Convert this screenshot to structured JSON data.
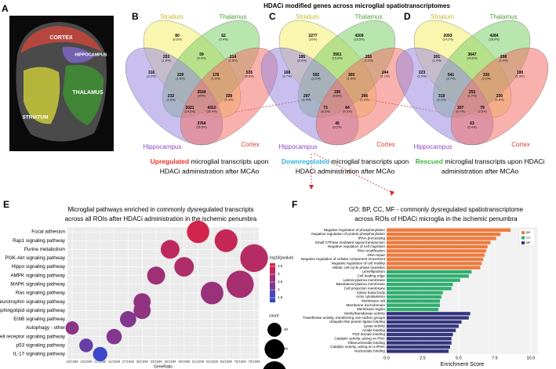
{
  "title": "HDACi modified genes across microglial spatiotranscriptomes",
  "panel_labels": [
    "A",
    "B",
    "C",
    "D",
    "E",
    "F"
  ],
  "brain": {
    "labels": [
      "CORTEX",
      "HIPPOCAMPUS",
      "THALAMUS",
      "STRIATUM"
    ]
  },
  "set_colors": [
    "#f3ee6e",
    "#7fcf6c",
    "#9a8be0",
    "#f2716a"
  ],
  "venns": [
    {
      "sets": [
        "Striatum",
        "Thalamus",
        "Hippocampus",
        "Cortex"
      ],
      "highlight_color": "#e8302a",
      "caption": {
        "highlight": "Upregulated",
        "text": " microglial transcripts upon",
        "text2": "HDACi administration after MCAo"
      },
      "regions": [
        {
          "count": 80,
          "pct": "(0.6%)"
        },
        {
          "count": 62,
          "pct": "(0.4%)"
        },
        {
          "count": 253,
          "pct": "(1.8%)"
        },
        {
          "count": 59,
          "pct": "(0.4%)"
        },
        {
          "count": 214,
          "pct": "(1.5%)"
        },
        {
          "count": 316,
          "pct": "(2.2%)"
        },
        {
          "count": 229,
          "pct": "(1.6%)"
        },
        {
          "count": 178,
          "pct": "(1.3%)"
        },
        {
          "count": 535,
          "pct": "(3.8%)"
        },
        {
          "count": 3544,
          "pct": "(25%)"
        },
        {
          "count": 232,
          "pct": "(1.6%)"
        },
        {
          "count": 328,
          "pct": "(2.3%)"
        },
        {
          "count": 2021,
          "pct": "(14.2%)"
        },
        {
          "count": 4310,
          "pct": "(30.4%)"
        },
        {
          "count": 3764,
          "pct": "(26.5%)"
        }
      ]
    },
    {
      "sets": [
        "Striatum",
        "Thalamus",
        "Hippocampus",
        "Cortex"
      ],
      "highlight_color": "#2fb3e0",
      "caption": {
        "highlight": "Downregulated",
        "text": " microglial transcripts upon",
        "text2": "HDACi administration after MCAo"
      },
      "regions": [
        {
          "count": 2277,
          "pct": "(10%)"
        },
        {
          "count": 4209,
          "pct": "(18.5%)"
        },
        {
          "count": 195,
          "pct": "(0.9%)"
        },
        {
          "count": 3561,
          "pct": "(15.6%)"
        },
        {
          "count": 255,
          "pct": "(1.1%)"
        },
        {
          "count": 168,
          "pct": "(0.7%)"
        },
        {
          "count": 502,
          "pct": "(2.2%)"
        },
        {
          "count": 300,
          "pct": "(1.3%)"
        },
        {
          "count": 244,
          "pct": "(1.1%)"
        },
        {
          "count": 190,
          "pct": "(0.8%)"
        },
        {
          "count": 297,
          "pct": "(1.3%)"
        },
        {
          "count": 266,
          "pct": "(1.2%)"
        },
        {
          "count": 73,
          "pct": "(0.3%)"
        },
        {
          "count": 64,
          "pct": "(0.3%)"
        },
        {
          "count": 45,
          "pct": "(0.2%)"
        }
      ]
    },
    {
      "sets": [
        "Striatum",
        "Thalamus",
        "Hippocampus",
        "Cortex"
      ],
      "highlight_color": "#3bb44a",
      "caption": {
        "highlight": "Rescued",
        "text": " microglial transcripts upon HDACi",
        "text2": "administration after MCAo"
      },
      "regions": [
        {
          "count": 2093,
          "pct": "(14.1%)"
        },
        {
          "count": 4284,
          "pct": "(28.9%)"
        },
        {
          "count": 201,
          "pct": "(1.4%)"
        },
        {
          "count": 3647,
          "pct": "(24.6%)"
        },
        {
          "count": 208,
          "pct": "(1.4%)"
        },
        {
          "count": 223,
          "pct": "(1.5%)"
        },
        {
          "count": 541,
          "pct": "(3.7%)"
        },
        {
          "count": 330,
          "pct": "(2.2%)"
        },
        {
          "count": 190,
          "pct": "(1.3%)"
        },
        {
          "count": 253,
          "pct": "(1.7%)"
        },
        {
          "count": 318,
          "pct": "(2.1%)"
        },
        {
          "count": 230,
          "pct": "(1.6%)"
        },
        {
          "count": 107,
          "pct": "(0.7%)"
        },
        {
          "count": 79,
          "pct": "(0.5%)"
        },
        {
          "count": 63,
          "pct": "(0.4%)"
        }
      ]
    }
  ],
  "chart_data": [
    {
      "type": "dot",
      "title": "Microglial pathways enriched in commonly dysregulated transcripts",
      "subtitle": "across all ROIs after HDACi administration in the ischemic penumbra",
      "xlabel": "GeneRatio",
      "categories": [
        "Focal adhesion",
        "Rap1 signaling pathway",
        "Purine metabolism",
        "PI3K-Akt signaling pathway",
        "Hippo signaling pathway",
        "AMPK signaling pathway",
        "MAPK signaling pathway",
        "Ras signaling pathway",
        "Neurotrophin signaling pathway",
        "Sphingolipid signaling pathway",
        "ErbB signaling pathway",
        "Autophagy - other",
        "T cell receptor signaling pathway",
        "p53 signaling pathway",
        "IL-17 signaling pathway"
      ],
      "x": [
        "51/1599",
        "53/1599",
        "36/1599",
        "78/1599",
        "39/1599",
        "33/1599",
        "76/1599",
        "52/1599",
        "30/1599",
        "30/1599",
        "27/1599",
        "18/1599",
        "24/1599",
        "19/1599",
        "21/1599"
      ],
      "xticks": [
        "18/1599",
        "19/1599",
        "21/1599",
        "24/1599",
        "27/1599",
        "30/1599",
        "33/1599",
        "36/1599",
        "39/1599",
        "51/1599",
        "52/1599",
        "53/1599",
        "76/1599",
        "78/1599"
      ],
      "count": [
        51,
        53,
        36,
        78,
        39,
        33,
        76,
        52,
        30,
        30,
        27,
        18,
        24,
        19,
        21
      ],
      "neg_log10_p": [
        3.5,
        3.3,
        3.2,
        3.1,
        3.0,
        2.8,
        2.9,
        2.7,
        2.6,
        2.6,
        2.4,
        2.5,
        2.4,
        2.0,
        1.4
      ],
      "color_title": "- log10(pvalue)",
      "color_lim": [
        1.2,
        3.7
      ],
      "color_ticks": [
        1.5,
        2.0,
        2.5,
        3.0,
        3.5
      ],
      "color_low": "#2b4bd6",
      "color_high": "#e2213f",
      "size_title": "count",
      "size_ticks": [
        20,
        40,
        60
      ],
      "grid": true
    },
    {
      "type": "hbar",
      "title": "GO: BP, CC, MF - commonly dysregulated spatiotranscriptome",
      "subtitle": "across ROIs of HDACi microglia in the ischemic penumbra",
      "xlabel": "Enrichment Score",
      "xlim": [
        0,
        10.5
      ],
      "xticks": [
        {
          "value": 0,
          "label": "0.0"
        },
        {
          "value": 2.5,
          "label": "2.5"
        },
        {
          "value": 5,
          "label": "5.0"
        },
        {
          "value": 7.5,
          "label": "7.5"
        },
        {
          "value": 10,
          "label": "10.0"
        }
      ],
      "grid": true,
      "series": [
        {
          "name": "BP",
          "color": "#ee7a3c",
          "categories": [
            "Negative regulation of phosphorylation",
            "Negative regulation of protein phosphorylation",
            "tRNA processing",
            "Small GTPase mediated signal transduction",
            "Negative regulation of cell migration",
            "RNA modification",
            "DNA repair",
            "Negative regulation of cellular component movement",
            "Negative regulation of cell motility",
            "Mitotic cell cycle phase transition"
          ],
          "values": [
            8.6,
            7.9,
            7.6,
            7.2,
            7.0,
            6.9,
            6.8,
            6.7,
            6.6,
            6.5
          ]
        },
        {
          "name": "CC",
          "color": "#2fae6e",
          "categories": [
            "Lamellipodium",
            "Cell leading edge",
            "Lateral plasma membrane",
            "Basolateral plasma membrane",
            "Cell projection membrane",
            "Ciliary basal body",
            "Actin cytoskeleton",
            "Membrane raft",
            "Membrane microdomain",
            "Membrane region"
          ],
          "values": [
            5.9,
            5.7,
            5.1,
            4.6,
            4.5,
            3.9,
            3.8,
            3.7,
            3.7,
            3.6
          ]
        },
        {
          "name": "MF",
          "color": "#36357e",
          "categories": [
            "Methyltransferase activity",
            "Transferase activity, transferring one-carbon groups",
            "Ubiquitin-like protein ligase binding",
            "Lyase activity",
            "Amide binding",
            "PDZ domain binding",
            "Catalytic activity, acting on RNA",
            "Ribonucleoside binding",
            "Catalytic activity, acting on a tRNA",
            "Nucleoside binding"
          ],
          "values": [
            5.8,
            5.7,
            5.2,
            5.0,
            4.8,
            4.6,
            4.5,
            4.5,
            4.4,
            4.3
          ]
        }
      ]
    }
  ]
}
